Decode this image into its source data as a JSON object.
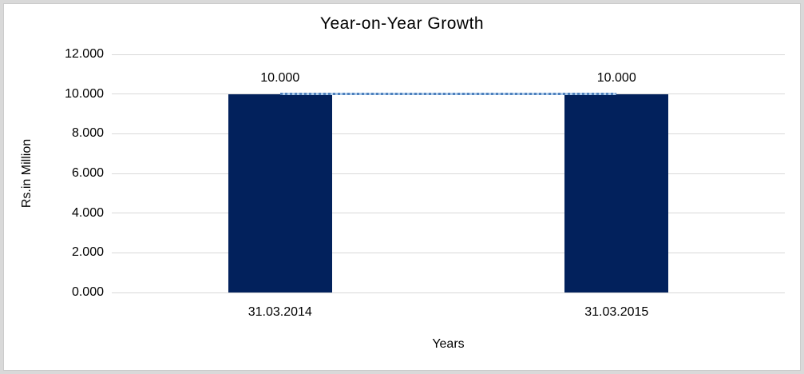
{
  "chart_data": {
    "type": "bar",
    "title": "Year-on-Year Growth",
    "xlabel": "Years",
    "ylabel": "Rs.in Million",
    "categories": [
      "31.03.2014",
      "31.03.2015"
    ],
    "series": [
      {
        "name": "growth",
        "values": [
          10,
          10
        ],
        "data_labels": [
          "10.000",
          "10.000"
        ]
      }
    ],
    "y_ticks": [
      {
        "label": "12.000",
        "value": 12
      },
      {
        "label": "10.000",
        "value": 10
      },
      {
        "label": "8.000",
        "value": 8
      },
      {
        "label": "6.000",
        "value": 6
      },
      {
        "label": "4.000",
        "value": 4
      },
      {
        "label": "2.000",
        "value": 2
      },
      {
        "label": "0.000",
        "value": 0
      }
    ],
    "ylim": [
      0,
      12
    ],
    "grid": true,
    "legend_position": "none",
    "connector": {
      "style": "dotted",
      "y": 10,
      "from_category": 0,
      "to_category": 1
    },
    "colors": {
      "bar_fill": "#02215C",
      "gridline": "#D9D9D9",
      "connector_dot": "#4F81BD",
      "connector_gap": "#AECBEA",
      "text": "#000000",
      "frame_outer": "#D9D9D9",
      "frame_inner": "#CBCBCB"
    }
  }
}
